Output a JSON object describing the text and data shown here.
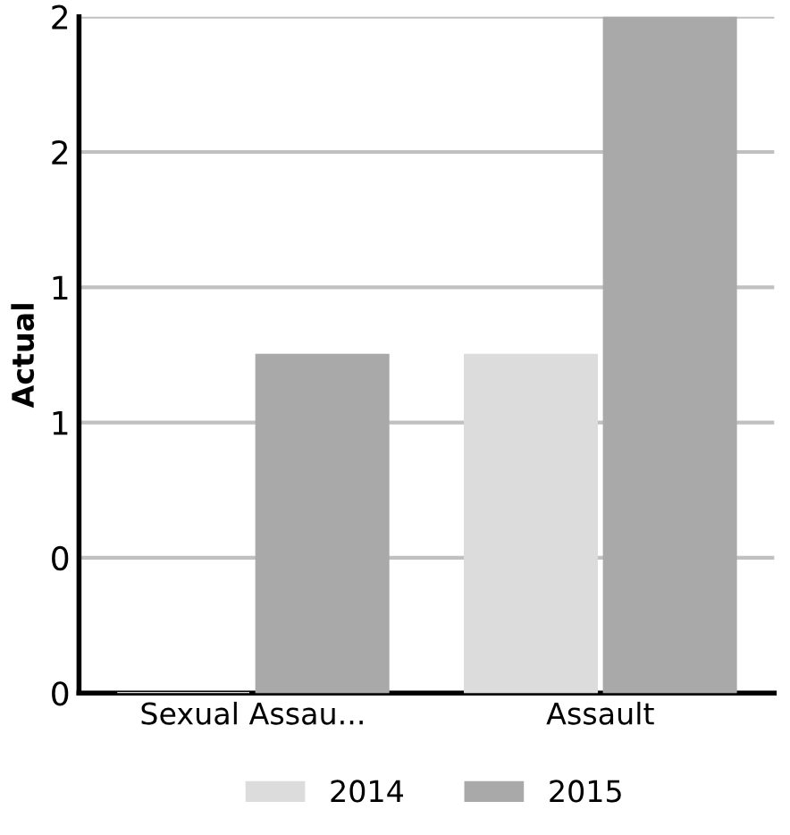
{
  "chart_data": {
    "type": "bar",
    "ylabel": "Actual",
    "categories": [
      "Sexual Assau...",
      "Assault"
    ],
    "series": [
      {
        "name": "2014",
        "color": "#dcdcdc",
        "values": [
          0,
          1
        ]
      },
      {
        "name": "2015",
        "color": "#a9a9a9",
        "values": [
          1,
          2
        ]
      }
    ],
    "ylim": [
      0,
      2.0
    ],
    "yticks": [
      {
        "value": 0,
        "label": "0"
      },
      {
        "value": 0.4,
        "label": "0"
      },
      {
        "value": 0.8,
        "label": "1"
      },
      {
        "value": 1.2,
        "label": "1"
      },
      {
        "value": 1.6,
        "label": "2"
      },
      {
        "value": 2.0,
        "label": "2"
      }
    ],
    "grid": "y",
    "legend": "bottom"
  }
}
